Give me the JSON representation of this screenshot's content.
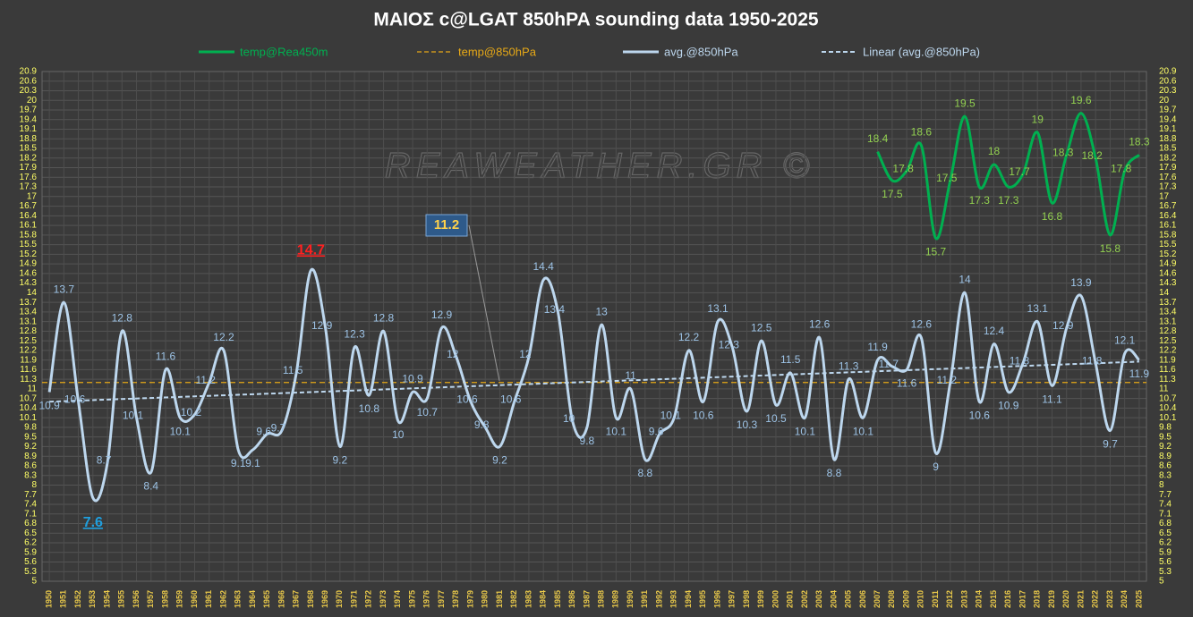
{
  "chart_data": {
    "type": "line",
    "title": "ΜΑΙΟΣ  c@LGAT  850hPA  sounding data   1950-2025",
    "watermark": "REAWEATHER.GR ©",
    "categories": [
      "1950",
      "1951",
      "1952",
      "1953",
      "1954",
      "1955",
      "1956",
      "1957",
      "1958",
      "1959",
      "1960",
      "1961",
      "1962",
      "1963",
      "1964",
      "1965",
      "1966",
      "1967",
      "1968",
      "1969",
      "1970",
      "1971",
      "1972",
      "1973",
      "1974",
      "1975",
      "1976",
      "1977",
      "1978",
      "1979",
      "1980",
      "1981",
      "1982",
      "1983",
      "1984",
      "1985",
      "1986",
      "1987",
      "1988",
      "1989",
      "1990",
      "1991",
      "1992",
      "1993",
      "1994",
      "1995",
      "1996",
      "1997",
      "1998",
      "1999",
      "2000",
      "2001",
      "2002",
      "2003",
      "2004",
      "2005",
      "2006",
      "2007",
      "2008",
      "2009",
      "2010",
      "2011",
      "2012",
      "2013",
      "2014",
      "2015",
      "2016",
      "2017",
      "2018",
      "2019",
      "2020",
      "2021",
      "2022",
      "2023",
      "2024",
      "2025"
    ],
    "series": [
      {
        "name": "temp@Rea450m",
        "color": "#00b050",
        "label_color": "#92d050",
        "values": [
          null,
          null,
          null,
          null,
          null,
          null,
          null,
          null,
          null,
          null,
          null,
          null,
          null,
          null,
          null,
          null,
          null,
          null,
          null,
          null,
          null,
          null,
          null,
          null,
          null,
          null,
          null,
          null,
          null,
          null,
          null,
          null,
          null,
          null,
          null,
          null,
          null,
          null,
          null,
          null,
          null,
          null,
          null,
          null,
          null,
          null,
          null,
          null,
          null,
          null,
          null,
          null,
          null,
          null,
          null,
          null,
          null,
          18.4,
          17.5,
          17.8,
          18.6,
          15.7,
          17.5,
          19.5,
          17.3,
          18,
          17.3,
          17.7,
          19,
          16.8,
          18.3,
          19.6,
          18.2,
          15.8,
          17.8,
          18.3
        ]
      },
      {
        "name": "avg.@850hPa",
        "color": "#bdd7ee",
        "label_color": "#9dc3e6",
        "values": [
          10.9,
          13.7,
          10.6,
          7.6,
          8.7,
          12.8,
          10.1,
          8.4,
          11.6,
          10.1,
          10.2,
          11.2,
          12.2,
          9.1,
          9.1,
          9.6,
          9.7,
          11.5,
          14.7,
          12.9,
          9.2,
          12.3,
          10.8,
          12.8,
          10,
          10.9,
          10.7,
          12.9,
          12,
          10.6,
          9.8,
          9.2,
          10.6,
          12,
          14.4,
          13.4,
          10,
          9.8,
          13,
          10.1,
          11,
          8.8,
          9.6,
          10.1,
          12.2,
          10.6,
          13.1,
          12.3,
          10.3,
          12.5,
          10.5,
          11.5,
          10.1,
          12.6,
          8.8,
          11.3,
          10.1,
          11.9,
          11.7,
          11.6,
          12.6,
          9,
          11.2,
          14,
          10.6,
          12.4,
          10.9,
          11.8,
          13.1,
          11.1,
          12.9,
          13.9,
          11.8,
          9.7,
          12.1,
          11.9
        ]
      }
    ],
    "reference": {
      "name": "temp@850hPa",
      "color": "#e6a817",
      "value": 11.2
    },
    "trendline": {
      "name": "Linear (avg.@850hPa)",
      "color": "#bdd7ee",
      "x": [
        "1950",
        "2025"
      ],
      "values": [
        10.6,
        11.85
      ]
    },
    "ylim": [
      5,
      20.9
    ],
    "yticks": [
      5,
      5.3,
      5.6,
      5.9,
      6.2,
      6.5,
      6.8,
      7.1,
      7.4,
      7.7,
      8,
      8.3,
      8.6,
      8.9,
      9.2,
      9.5,
      9.8,
      10.1,
      10.4,
      10.7,
      11,
      11.3,
      11.6,
      11.9,
      12.2,
      12.5,
      12.8,
      13.1,
      13.4,
      13.7,
      14,
      14.3,
      14.6,
      14.9,
      15.2,
      15.5,
      15.8,
      16.1,
      16.4,
      16.7,
      17,
      17.3,
      17.6,
      17.9,
      18.2,
      18.5,
      18.8,
      19.1,
      19.4,
      19.7,
      20,
      20.3,
      20.6,
      20.9
    ],
    "grid": true
  }
}
